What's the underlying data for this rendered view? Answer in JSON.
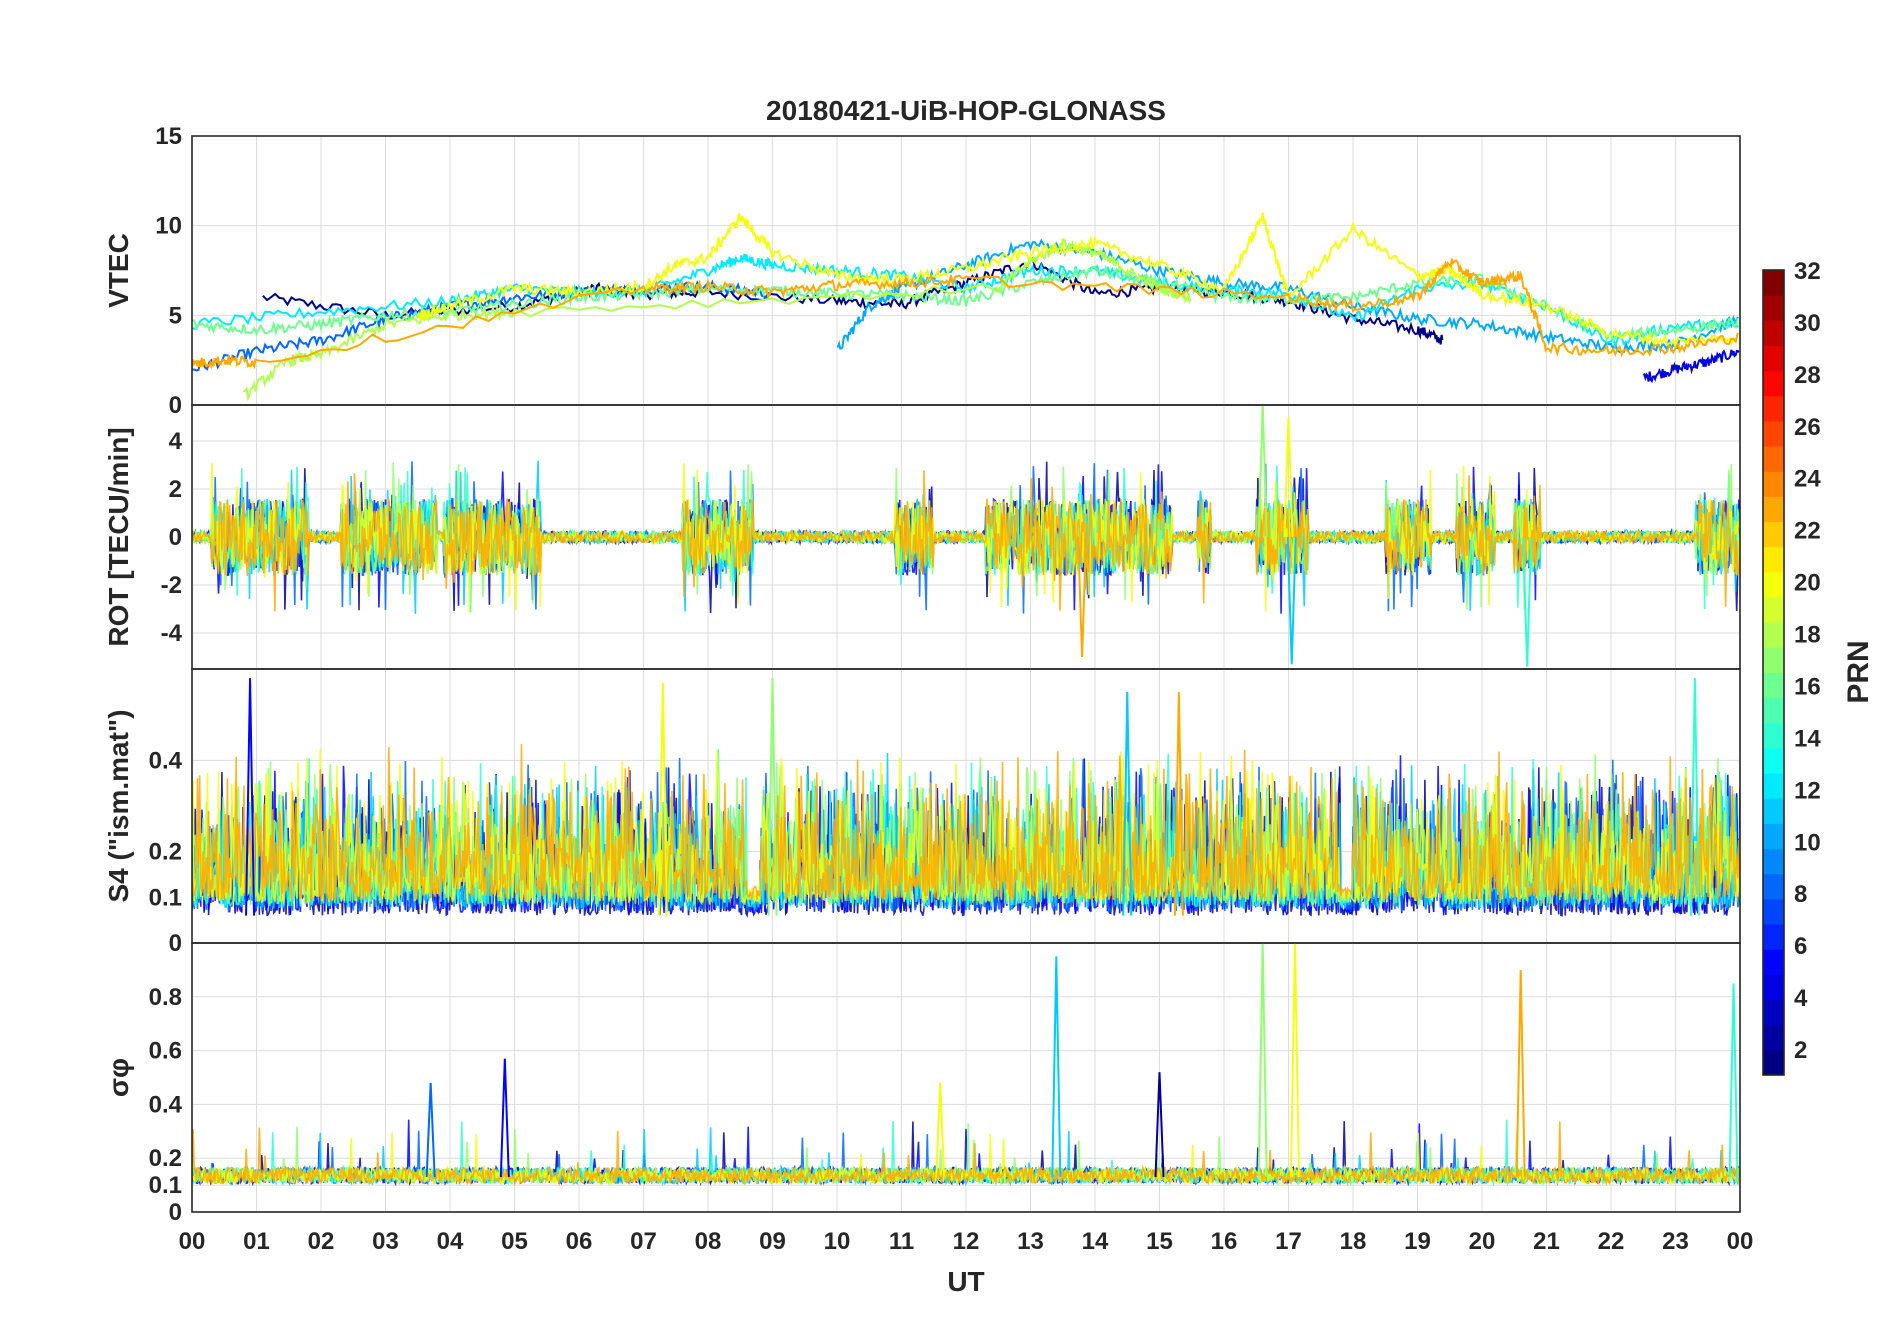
{
  "chart_data": {
    "type": "line",
    "title": "20180421-UiB-HOP-GLONASS",
    "xlabel": "UT",
    "x_ticks": [
      "00",
      "01",
      "02",
      "03",
      "04",
      "05",
      "06",
      "07",
      "08",
      "09",
      "10",
      "11",
      "12",
      "13",
      "14",
      "15",
      "16",
      "17",
      "18",
      "19",
      "20",
      "21",
      "22",
      "23",
      "00"
    ],
    "xlim": [
      0,
      24
    ],
    "grid": true,
    "panels": [
      {
        "ylabel": "VTEC",
        "ylim": [
          0,
          15
        ],
        "y_ticks": [
          0,
          5,
          10,
          15
        ],
        "series_by_prn": [
          {
            "prn": 1,
            "x": [
              1.1,
              3,
              5,
              6.2,
              7,
              8,
              10,
              11,
              12,
              13,
              14,
              15,
              16,
              17,
              18,
              19,
              19.4
            ],
            "y": [
              6,
              5,
              5.5,
              6.5,
              6.2,
              6.3,
              5.8,
              5.6,
              6.8,
              8,
              6.2,
              6.5,
              6.3,
              5.8,
              4.8,
              4.2,
              3.6
            ]
          },
          {
            "prn": 4,
            "x": [
              22.5,
              23,
              23.5,
              24
            ],
            "y": [
              1.5,
              2,
              2.4,
              3
            ]
          },
          {
            "prn": 8,
            "x": [
              0,
              1,
              2,
              3,
              4,
              5,
              6,
              7,
              8,
              9
            ],
            "y": [
              2,
              3,
              3.6,
              4.8,
              5.5,
              6,
              6.3,
              6.5,
              6.6,
              6.2
            ]
          },
          {
            "prn": 10,
            "x": [
              10,
              10.5,
              11,
              12,
              13,
              14,
              15,
              16,
              17,
              18,
              19,
              20,
              21,
              22,
              23,
              24
            ],
            "y": [
              3,
              5.5,
              6.5,
              7.8,
              9,
              8.5,
              7.5,
              6.8,
              6.5,
              5.5,
              4.8,
              4.5,
              3.8,
              3.2,
              3.4,
              4.8
            ]
          },
          {
            "prn": 12,
            "x": [
              0,
              2,
              4,
              5,
              6,
              7,
              8,
              8.5,
              9,
              10,
              11,
              12,
              13,
              14,
              15,
              16,
              17,
              18,
              19,
              20,
              21,
              22,
              23,
              24
            ],
            "y": [
              4.5,
              5.2,
              5.8,
              6.5,
              6.3,
              6.3,
              7.5,
              8.2,
              7.8,
              7.5,
              7.2,
              6.5,
              7.5,
              7.5,
              6.8,
              6.4,
              6.2,
              4.8,
              6.5,
              6.8,
              5.5,
              3.5,
              4.4,
              4.5
            ]
          },
          {
            "prn": 16,
            "x": [
              0,
              1,
              2,
              3,
              4,
              5,
              6,
              7,
              8,
              9,
              10,
              11,
              12,
              13,
              14,
              15,
              16,
              17,
              18,
              19,
              20,
              21,
              22,
              23,
              24
            ],
            "y": [
              4.5,
              4.2,
              4.5,
              5,
              5.2,
              5.6,
              6,
              6.2,
              6.5,
              6.4,
              6.2,
              6.1,
              5.8,
              6.8,
              7.5,
              6.8,
              6,
              5.9,
              6,
              6.8,
              7,
              5.5,
              3.8,
              4.2,
              4.6
            ]
          },
          {
            "prn": 18,
            "x": [
              0.8,
              1.5,
              2,
              3,
              4,
              5,
              12.5,
              13,
              13.5,
              14,
              14.5,
              15,
              15.5
            ],
            "y": [
              0.5,
              2.5,
              2.8,
              4.5,
              5,
              5.2,
              6.5,
              8,
              9,
              8.5,
              7.5,
              6.5,
              6
            ]
          },
          {
            "prn": 20,
            "x": [
              3.5,
              4,
              5,
              6,
              7,
              7.5,
              8,
              8.5,
              9,
              10,
              11,
              12,
              13,
              14,
              15,
              16,
              16.6,
              17,
              18,
              19,
              19.5,
              20,
              21,
              22,
              23,
              24
            ],
            "y": [
              5,
              5.5,
              6.5,
              6.3,
              6.6,
              7.8,
              8.2,
              10.5,
              8.5,
              7.2,
              7,
              7.6,
              8.5,
              9,
              7.8,
              6.4,
              10.5,
              6,
              9.8,
              7.2,
              7.5,
              6.2,
              5.5,
              4,
              3.5,
              3.8
            ]
          },
          {
            "prn": 23,
            "x": [
              0,
              0.5,
              1,
              7,
              8,
              9,
              10,
              11,
              12,
              17,
              18,
              19,
              19.5,
              20,
              20.6,
              21,
              22,
              23,
              24
            ],
            "y": [
              2.3,
              2.5,
              2.4,
              6.5,
              6.6,
              6.3,
              6.7,
              6.8,
              7,
              6,
              5.5,
              6,
              8,
              6.8,
              7.2,
              3.2,
              3,
              3.2,
              3.8
            ]
          }
        ]
      },
      {
        "ylabel": "ROT [TECU/min]",
        "ylim": [
          -5.5,
          5.5
        ],
        "y_ticks": [
          -4,
          -2,
          0,
          2,
          4
        ],
        "activity_windows_UT": [
          [
            0.3,
            1.8
          ],
          [
            2.3,
            3.8
          ],
          [
            3.9,
            5.4
          ],
          [
            7.6,
            8.7
          ],
          [
            10.9,
            11.5
          ],
          [
            12.3,
            15.2
          ],
          [
            15.6,
            15.8
          ],
          [
            16.5,
            17.3
          ],
          [
            18.5,
            19.2
          ],
          [
            19.6,
            20.2
          ],
          [
            20.5,
            20.9
          ],
          [
            23.3,
            24
          ]
        ],
        "peaks": [
          {
            "x": 16.6,
            "y": 5.5
          },
          {
            "x": 17.0,
            "y": 5
          },
          {
            "x": 17.05,
            "y": -5.3
          },
          {
            "x": 13.8,
            "y": -5
          },
          {
            "x": 20.7,
            "y": -5.4
          }
        ]
      },
      {
        "ylabel": "S4 (\"ism.mat\")",
        "ylim": [
          0,
          0.6
        ],
        "y_ticks": [
          0,
          0.1,
          0.2,
          0.4
        ],
        "baseline": 0.06,
        "activity_windows_UT": [
          [
            0,
            1
          ],
          [
            1,
            2.5
          ],
          [
            2.5,
            4.2
          ],
          [
            4.2,
            6.5
          ],
          [
            6.5,
            8.6
          ],
          [
            8.8,
            11.5
          ],
          [
            11.5,
            13.5
          ],
          [
            13.5,
            15.5
          ],
          [
            15.5,
            17.8
          ],
          [
            18,
            19.8
          ],
          [
            19.8,
            21.5
          ],
          [
            21.5,
            24
          ]
        ],
        "peaks": [
          {
            "x": 9,
            "y": 0.58
          },
          {
            "x": 7.3,
            "y": 0.57
          },
          {
            "x": 14.5,
            "y": 0.55
          },
          {
            "x": 15.3,
            "y": 0.55
          },
          {
            "x": 23.3,
            "y": 0.58
          },
          {
            "x": 0.9,
            "y": 0.58
          }
        ]
      },
      {
        "ylabel": "σφ",
        "ylim": [
          0,
          1
        ],
        "y_ticks": [
          0,
          0.1,
          0.2,
          0.4,
          0.6,
          0.8
        ],
        "baseline": 0.13,
        "peaks": [
          {
            "x": 16.6,
            "y": 1
          },
          {
            "x": 17.1,
            "y": 1
          },
          {
            "x": 13.4,
            "y": 0.95
          },
          {
            "x": 20.6,
            "y": 0.9
          },
          {
            "x": 23.9,
            "y": 0.85
          },
          {
            "x": 4.85,
            "y": 0.57
          },
          {
            "x": 3.7,
            "y": 0.48
          },
          {
            "x": 15,
            "y": 0.52
          },
          {
            "x": 11.6,
            "y": 0.48
          }
        ]
      }
    ],
    "colorbar": {
      "label": "PRN",
      "range": [
        1,
        32
      ],
      "ticks": [
        2,
        4,
        6,
        8,
        10,
        12,
        14,
        16,
        18,
        20,
        22,
        24,
        26,
        28,
        30,
        32
      ],
      "colormap": "jet"
    }
  }
}
